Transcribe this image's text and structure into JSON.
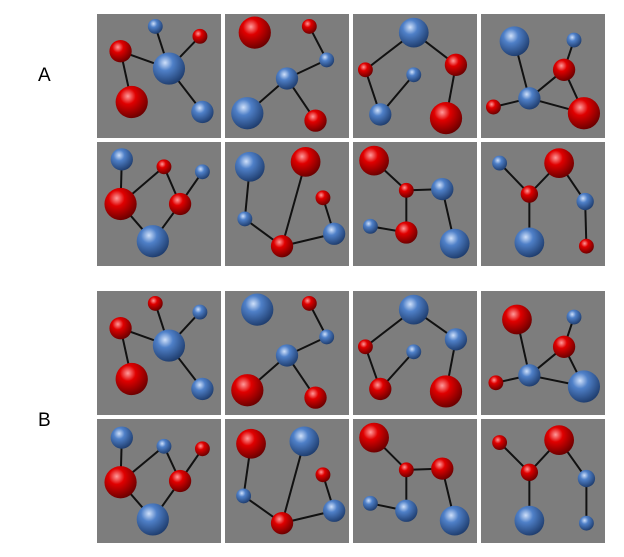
{
  "groups": [
    {
      "label": "A",
      "label_y": 65,
      "top": 14
    },
    {
      "label": "B",
      "label_y": 410,
      "top": 291
    }
  ],
  "colors": {
    "red": "#e00000",
    "blue": "#4f80c8",
    "bond": "#111111",
    "background": "#7d7d7d"
  },
  "panels": [
    {
      "nodes": [
        [
          0.47,
          0.1,
          0.06,
          "b"
        ],
        [
          0.83,
          0.18,
          0.06,
          "r"
        ],
        [
          0.19,
          0.3,
          0.09,
          "r"
        ],
        [
          0.58,
          0.44,
          0.13,
          "b"
        ],
        [
          0.28,
          0.71,
          0.13,
          "r"
        ],
        [
          0.85,
          0.79,
          0.09,
          "b"
        ]
      ],
      "edges": [
        [
          0,
          3
        ],
        [
          1,
          3
        ],
        [
          2,
          3
        ],
        [
          3,
          5
        ],
        [
          2,
          4
        ]
      ]
    },
    {
      "nodes": [
        [
          0.24,
          0.15,
          0.13,
          "r"
        ],
        [
          0.68,
          0.1,
          0.06,
          "r"
        ],
        [
          0.82,
          0.37,
          0.06,
          "b"
        ],
        [
          0.5,
          0.52,
          0.09,
          "b"
        ],
        [
          0.18,
          0.8,
          0.13,
          "b"
        ],
        [
          0.73,
          0.86,
          0.09,
          "r"
        ]
      ],
      "edges": [
        [
          1,
          2
        ],
        [
          2,
          3
        ],
        [
          3,
          4
        ],
        [
          3,
          5
        ]
      ]
    },
    {
      "nodes": [
        [
          0.49,
          0.15,
          0.12,
          "b"
        ],
        [
          0.83,
          0.41,
          0.09,
          "r"
        ],
        [
          0.1,
          0.45,
          0.06,
          "r"
        ],
        [
          0.49,
          0.49,
          0.06,
          "b"
        ],
        [
          0.22,
          0.81,
          0.09,
          "b"
        ],
        [
          0.75,
          0.84,
          0.13,
          "r"
        ]
      ],
      "edges": [
        [
          0,
          2
        ],
        [
          0,
          1
        ],
        [
          1,
          5
        ],
        [
          3,
          4
        ],
        [
          2,
          4
        ]
      ]
    },
    {
      "nodes": [
        [
          0.27,
          0.22,
          0.12,
          "b"
        ],
        [
          0.75,
          0.21,
          0.06,
          "b"
        ],
        [
          0.67,
          0.45,
          0.09,
          "r"
        ],
        [
          0.39,
          0.68,
          0.09,
          "b"
        ],
        [
          0.1,
          0.75,
          0.06,
          "r"
        ],
        [
          0.83,
          0.8,
          0.13,
          "r"
        ]
      ],
      "edges": [
        [
          0,
          3
        ],
        [
          1,
          2
        ],
        [
          2,
          3
        ],
        [
          2,
          5
        ],
        [
          3,
          5
        ],
        [
          3,
          4
        ]
      ]
    },
    {
      "nodes": [
        [
          0.2,
          0.14,
          0.09,
          "b"
        ],
        [
          0.54,
          0.2,
          0.06,
          "r"
        ],
        [
          0.85,
          0.24,
          0.06,
          "b"
        ],
        [
          0.19,
          0.5,
          0.13,
          "r"
        ],
        [
          0.67,
          0.5,
          0.09,
          "r"
        ],
        [
          0.45,
          0.8,
          0.13,
          "b"
        ]
      ],
      "edges": [
        [
          0,
          3
        ],
        [
          1,
          3
        ],
        [
          1,
          4
        ],
        [
          2,
          4
        ],
        [
          3,
          5
        ],
        [
          4,
          5
        ]
      ]
    },
    {
      "nodes": [
        [
          0.2,
          0.2,
          0.12,
          "b"
        ],
        [
          0.65,
          0.16,
          0.12,
          "r"
        ],
        [
          0.79,
          0.45,
          0.06,
          "r"
        ],
        [
          0.16,
          0.62,
          0.06,
          "b"
        ],
        [
          0.88,
          0.74,
          0.09,
          "b"
        ],
        [
          0.46,
          0.84,
          0.09,
          "r"
        ]
      ],
      "edges": [
        [
          0,
          3
        ],
        [
          3,
          5
        ],
        [
          1,
          5
        ],
        [
          5,
          4
        ],
        [
          2,
          4
        ]
      ]
    },
    {
      "nodes": [
        [
          0.17,
          0.15,
          0.12,
          "r"
        ],
        [
          0.43,
          0.39,
          0.06,
          "r"
        ],
        [
          0.72,
          0.38,
          0.09,
          "b"
        ],
        [
          0.14,
          0.68,
          0.06,
          "b"
        ],
        [
          0.43,
          0.73,
          0.09,
          "r"
        ],
        [
          0.82,
          0.82,
          0.12,
          "b"
        ]
      ],
      "edges": [
        [
          0,
          1
        ],
        [
          1,
          2
        ],
        [
          1,
          4
        ],
        [
          3,
          4
        ],
        [
          2,
          5
        ]
      ]
    },
    {
      "nodes": [
        [
          0.15,
          0.17,
          0.06,
          "b"
        ],
        [
          0.63,
          0.17,
          0.12,
          "r"
        ],
        [
          0.39,
          0.42,
          0.07,
          "r"
        ],
        [
          0.84,
          0.48,
          0.07,
          "b"
        ],
        [
          0.39,
          0.81,
          0.12,
          "b"
        ],
        [
          0.85,
          0.84,
          0.06,
          "r"
        ]
      ],
      "edges": [
        [
          0,
          2
        ],
        [
          1,
          2
        ],
        [
          1,
          3
        ],
        [
          2,
          4
        ],
        [
          3,
          5
        ]
      ]
    },
    {
      "nodes": [
        [
          0.47,
          0.1,
          0.06,
          "r"
        ],
        [
          0.83,
          0.17,
          0.06,
          "b"
        ],
        [
          0.19,
          0.3,
          0.09,
          "r"
        ],
        [
          0.58,
          0.44,
          0.13,
          "b"
        ],
        [
          0.28,
          0.71,
          0.13,
          "r"
        ],
        [
          0.85,
          0.79,
          0.09,
          "b"
        ]
      ],
      "edges": [
        [
          0,
          3
        ],
        [
          1,
          3
        ],
        [
          2,
          3
        ],
        [
          3,
          5
        ],
        [
          2,
          4
        ]
      ]
    },
    {
      "nodes": [
        [
          0.26,
          0.15,
          0.13,
          "b"
        ],
        [
          0.68,
          0.1,
          0.06,
          "r"
        ],
        [
          0.82,
          0.37,
          0.06,
          "b"
        ],
        [
          0.5,
          0.52,
          0.09,
          "b"
        ],
        [
          0.18,
          0.8,
          0.13,
          "r"
        ],
        [
          0.73,
          0.86,
          0.09,
          "r"
        ]
      ],
      "edges": [
        [
          1,
          2
        ],
        [
          2,
          3
        ],
        [
          3,
          4
        ],
        [
          3,
          5
        ]
      ]
    },
    {
      "nodes": [
        [
          0.49,
          0.15,
          0.12,
          "b"
        ],
        [
          0.83,
          0.39,
          0.09,
          "b"
        ],
        [
          0.1,
          0.45,
          0.06,
          "r"
        ],
        [
          0.49,
          0.49,
          0.06,
          "b"
        ],
        [
          0.22,
          0.79,
          0.09,
          "r"
        ],
        [
          0.75,
          0.81,
          0.13,
          "r"
        ]
      ],
      "edges": [
        [
          0,
          2
        ],
        [
          0,
          1
        ],
        [
          1,
          5
        ],
        [
          3,
          4
        ],
        [
          2,
          4
        ]
      ]
    },
    {
      "nodes": [
        [
          0.29,
          0.23,
          0.12,
          "r"
        ],
        [
          0.75,
          0.21,
          0.06,
          "b"
        ],
        [
          0.67,
          0.45,
          0.09,
          "r"
        ],
        [
          0.39,
          0.68,
          0.09,
          "b"
        ],
        [
          0.12,
          0.74,
          0.06,
          "r"
        ],
        [
          0.83,
          0.77,
          0.13,
          "b"
        ]
      ],
      "edges": [
        [
          0,
          3
        ],
        [
          1,
          2
        ],
        [
          2,
          3
        ],
        [
          2,
          5
        ],
        [
          3,
          5
        ],
        [
          3,
          4
        ]
      ]
    },
    {
      "nodes": [
        [
          0.2,
          0.15,
          0.09,
          "b"
        ],
        [
          0.54,
          0.22,
          0.06,
          "b"
        ],
        [
          0.85,
          0.24,
          0.06,
          "r"
        ],
        [
          0.19,
          0.51,
          0.13,
          "r"
        ],
        [
          0.67,
          0.5,
          0.09,
          "r"
        ],
        [
          0.45,
          0.81,
          0.13,
          "b"
        ]
      ],
      "edges": [
        [
          0,
          3
        ],
        [
          1,
          3
        ],
        [
          1,
          4
        ],
        [
          2,
          4
        ],
        [
          3,
          5
        ],
        [
          4,
          5
        ]
      ]
    },
    {
      "nodes": [
        [
          0.21,
          0.2,
          0.12,
          "r"
        ],
        [
          0.64,
          0.18,
          0.12,
          "b"
        ],
        [
          0.79,
          0.45,
          0.06,
          "r"
        ],
        [
          0.15,
          0.62,
          0.06,
          "b"
        ],
        [
          0.88,
          0.74,
          0.09,
          "b"
        ],
        [
          0.46,
          0.84,
          0.09,
          "r"
        ]
      ],
      "edges": [
        [
          0,
          3
        ],
        [
          3,
          5
        ],
        [
          1,
          5
        ],
        [
          5,
          4
        ],
        [
          2,
          4
        ]
      ]
    },
    {
      "nodes": [
        [
          0.17,
          0.15,
          0.12,
          "r"
        ],
        [
          0.43,
          0.41,
          0.06,
          "r"
        ],
        [
          0.72,
          0.4,
          0.09,
          "r"
        ],
        [
          0.14,
          0.68,
          0.06,
          "b"
        ],
        [
          0.43,
          0.74,
          0.09,
          "b"
        ],
        [
          0.82,
          0.82,
          0.12,
          "b"
        ]
      ],
      "edges": [
        [
          0,
          1
        ],
        [
          1,
          2
        ],
        [
          1,
          4
        ],
        [
          3,
          4
        ],
        [
          2,
          5
        ]
      ]
    },
    {
      "nodes": [
        [
          0.15,
          0.19,
          0.06,
          "r"
        ],
        [
          0.63,
          0.17,
          0.12,
          "r"
        ],
        [
          0.39,
          0.43,
          0.07,
          "r"
        ],
        [
          0.85,
          0.48,
          0.07,
          "b"
        ],
        [
          0.39,
          0.82,
          0.12,
          "b"
        ],
        [
          0.85,
          0.84,
          0.06,
          "b"
        ]
      ],
      "edges": [
        [
          0,
          2
        ],
        [
          1,
          2
        ],
        [
          1,
          3
        ],
        [
          2,
          4
        ],
        [
          3,
          5
        ]
      ]
    }
  ]
}
